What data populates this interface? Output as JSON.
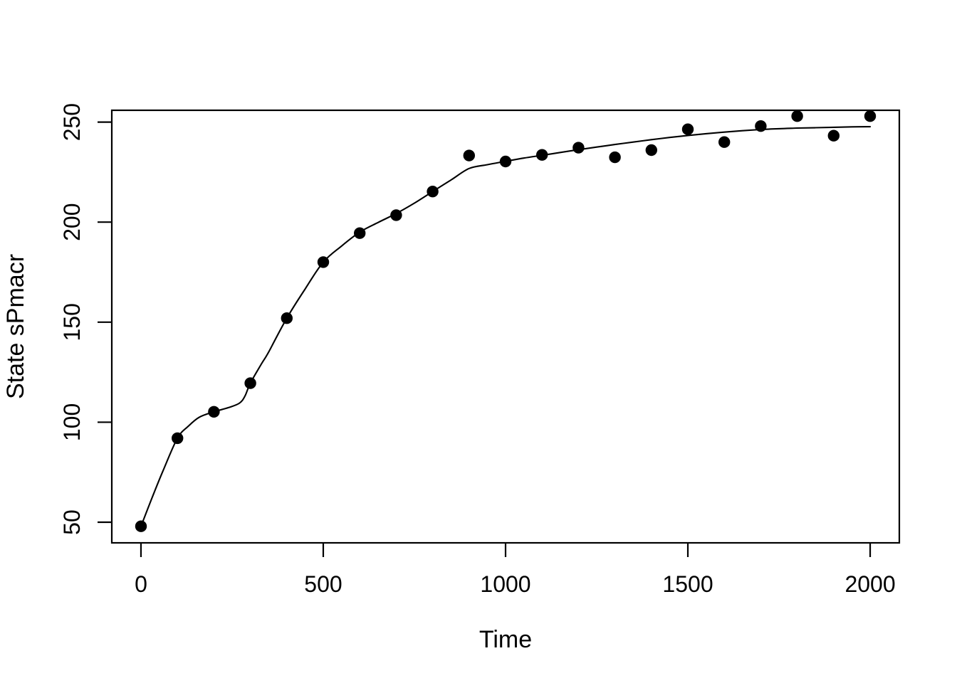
{
  "figure": {
    "background": "#ffffff",
    "foreground": "#000000"
  },
  "chart_data": {
    "type": "scatter",
    "title": "",
    "xlabel": "Time",
    "ylabel": "State sPmacr",
    "x_ticks": [
      0,
      500,
      1000,
      1500,
      2000
    ],
    "y_ticks": [
      50,
      100,
      150,
      200,
      250
    ],
    "xlim": [
      -80,
      2080
    ],
    "ylim": [
      39.7,
      255.9
    ],
    "grid": false,
    "legend_position": "none",
    "marker": "filled-circle",
    "marker_radius_px": 8.2,
    "series": [
      {
        "name": "observed-points",
        "type": "points",
        "color": "#000000",
        "x": [
          0,
          100,
          200,
          300,
          400,
          500,
          600,
          700,
          800,
          900,
          1000,
          1100,
          1200,
          1300,
          1400,
          1500,
          1600,
          1700,
          1800,
          1900,
          2000
        ],
        "y": [
          48,
          92,
          105.2,
          119.5,
          152,
          180,
          194.5,
          203.5,
          215.3,
          233.3,
          230.3,
          233.6,
          237.2,
          232.4,
          236,
          246.4,
          240,
          248,
          253,
          243.2,
          253
        ]
      },
      {
        "name": "fitted-curve",
        "type": "line",
        "color": "#000000",
        "x": [
          0,
          30,
          60,
          100,
          130,
          160,
          200,
          240,
          270,
          285,
          300,
          330,
          350,
          400,
          450,
          500,
          550,
          600,
          650,
          700,
          750,
          800,
          850,
          900,
          950,
          1000,
          1050,
          1100,
          1150,
          1200,
          1250,
          1300,
          1350,
          1400,
          1450,
          1500,
          1550,
          1600,
          1650,
          1700,
          1750,
          1800,
          1850,
          1900,
          1950,
          2000
        ],
        "y": [
          48,
          62,
          75.5,
          92,
          98,
          102.5,
          105.2,
          107.3,
          109.5,
          113,
          119.5,
          129,
          135,
          152,
          166.5,
          180,
          188,
          195,
          199.8,
          204.3,
          209.5,
          215.3,
          221,
          226.8,
          228.7,
          230.4,
          232,
          233.4,
          234.8,
          236.2,
          237.5,
          238.8,
          240,
          241.2,
          242.3,
          243.3,
          244.2,
          245,
          245.7,
          246.3,
          246.7,
          247,
          247.2,
          247.4,
          247.6,
          247.7
        ]
      }
    ]
  }
}
